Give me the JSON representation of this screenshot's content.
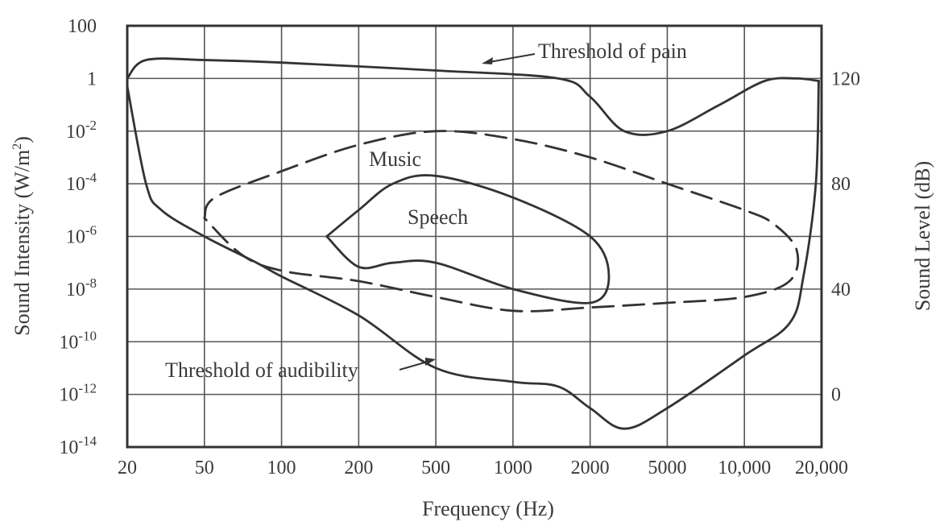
{
  "chart_data": {
    "type": "line",
    "xlabel": "Frequency (Hz)",
    "ylabel_left": "Sound Intensity (W/m",
    "ylabel_left_sup": "2",
    "ylabel_left_end": ")",
    "ylabel_right": "Sound Level (dB)",
    "x_scale": "log",
    "y_scale": "log",
    "x_ticks": [
      {
        "value": 20,
        "label": "20"
      },
      {
        "value": 50,
        "label": "50"
      },
      {
        "value": 100,
        "label": "100"
      },
      {
        "value": 200,
        "label": "200"
      },
      {
        "value": 500,
        "label": "500"
      },
      {
        "value": 1000,
        "label": "1000"
      },
      {
        "value": 2000,
        "label": "2000"
      },
      {
        "value": 5000,
        "label": "5000"
      },
      {
        "value": 10000,
        "label": "10,000"
      },
      {
        "value": 20000,
        "label": "20,000"
      }
    ],
    "y_ticks": [
      {
        "exp": 2,
        "base": "100",
        "sup": ""
      },
      {
        "exp": 0,
        "base": "1",
        "sup": ""
      },
      {
        "exp": -2,
        "base": "10",
        "sup": "-2"
      },
      {
        "exp": -4,
        "base": "10",
        "sup": "-4"
      },
      {
        "exp": -6,
        "base": "10",
        "sup": "-6"
      },
      {
        "exp": -8,
        "base": "10",
        "sup": "-8"
      },
      {
        "exp": -10,
        "base": "10",
        "sup": "-10"
      },
      {
        "exp": -12,
        "base": "10",
        "sup": "-12"
      },
      {
        "exp": -14,
        "base": "10",
        "sup": "-14"
      }
    ],
    "y_right_ticks": [
      {
        "db": 120,
        "label": "120"
      },
      {
        "db": 80,
        "label": "80"
      },
      {
        "db": 40,
        "label": "40"
      },
      {
        "db": 0,
        "label": "0"
      }
    ],
    "ylim_exp": [
      -14,
      2
    ],
    "xlim": [
      20,
      20000
    ],
    "grid": true,
    "annotations": {
      "pain": "Threshold of pain",
      "audibility": "Threshold of audibility",
      "music": "Music",
      "speech": "Speech"
    },
    "series": [
      {
        "key": "pain",
        "style": "solid",
        "points": [
          [
            20,
            1
          ],
          [
            25,
            5
          ],
          [
            50,
            5
          ],
          [
            100,
            4
          ],
          [
            500,
            2
          ],
          [
            1500,
            1
          ],
          [
            2000,
            0.2
          ],
          [
            3000,
            0.01
          ],
          [
            5000,
            0.01
          ],
          [
            8000,
            0.1
          ],
          [
            12000,
            0.8
          ],
          [
            16000,
            1
          ],
          [
            19500,
            0.8
          ]
        ]
      },
      {
        "key": "audibility",
        "style": "solid",
        "points": [
          [
            20,
            0.5
          ],
          [
            25,
            0.0001
          ],
          [
            30,
            1e-05
          ],
          [
            50,
            1e-06
          ],
          [
            80,
            1e-07
          ],
          [
            100,
            3e-08
          ],
          [
            200,
            1e-09
          ],
          [
            500,
            1e-11
          ],
          [
            1000,
            3e-12
          ],
          [
            1500,
            2e-12
          ],
          [
            2000,
            3e-13
          ],
          [
            3000,
            5e-14
          ],
          [
            5000,
            3e-13
          ],
          [
            10000,
            3e-11
          ],
          [
            15000,
            5e-10
          ],
          [
            17000,
            3e-08
          ],
          [
            19000,
            0.0001
          ],
          [
            19500,
            0.8
          ]
        ]
      },
      {
        "key": "music",
        "style": "dashed",
        "points": [
          [
            50,
            5e-06
          ],
          [
            55,
            3e-05
          ],
          [
            100,
            0.0003
          ],
          [
            200,
            0.003
          ],
          [
            500,
            0.01
          ],
          [
            1000,
            0.005
          ],
          [
            2000,
            0.001
          ],
          [
            5000,
            0.0001
          ],
          [
            10000,
            1e-05
          ],
          [
            13000,
            3e-06
          ],
          [
            16000,
            3e-07
          ],
          [
            15000,
            2e-08
          ],
          [
            10000,
            5e-09
          ],
          [
            5000,
            3e-09
          ],
          [
            2000,
            2e-09
          ],
          [
            1000,
            1.5e-09
          ],
          [
            500,
            5e-09
          ],
          [
            200,
            2e-08
          ],
          [
            100,
            5e-08
          ],
          [
            70,
            2e-07
          ],
          [
            50,
            5e-06
          ]
        ]
      },
      {
        "key": "speech",
        "style": "solid",
        "points": [
          [
            150,
            1e-06
          ],
          [
            200,
            1e-05
          ],
          [
            300,
            0.0001
          ],
          [
            500,
            0.0002
          ],
          [
            1000,
            3e-05
          ],
          [
            2000,
            1e-06
          ],
          [
            2500,
            3e-08
          ],
          [
            2000,
            3e-09
          ],
          [
            1000,
            1e-08
          ],
          [
            500,
            1e-07
          ],
          [
            300,
            1e-07
          ],
          [
            200,
            7e-08
          ],
          [
            150,
            1e-06
          ]
        ]
      }
    ]
  }
}
